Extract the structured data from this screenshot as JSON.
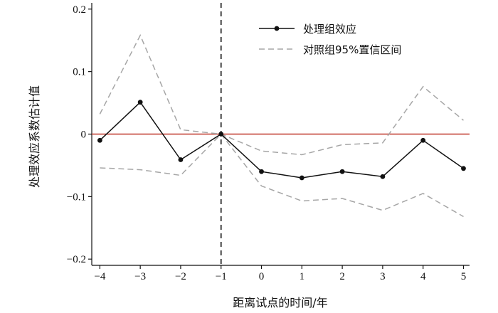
{
  "chart_data": {
    "type": "line",
    "xlabel": "距离试点的时间/年",
    "ylabel": "处理效应系数估计值",
    "x": [
      -4,
      -3,
      -2,
      -1,
      0,
      1,
      2,
      3,
      4,
      5
    ],
    "xlim": [
      -4.2,
      5.15
    ],
    "ylim": [
      -0.21,
      0.21
    ],
    "x_ticks": [
      "−4",
      "−3",
      "−2",
      "−1",
      "0",
      "1",
      "2",
      "3",
      "4",
      "5"
    ],
    "y_ticks": [
      {
        "value": 0.2,
        "label": "0.2"
      },
      {
        "value": 0.1,
        "label": "0.1"
      },
      {
        "value": 0,
        "label": "0"
      },
      {
        "value": -0.1,
        "label": "−0.1"
      },
      {
        "value": -0.2,
        "label": "−0.2"
      }
    ],
    "series": [
      {
        "name": "处理组效应",
        "style": "solid-marker",
        "color": "#111111",
        "values": [
          -0.01,
          0.051,
          -0.041,
          0.0,
          -0.06,
          -0.07,
          -0.06,
          -0.068,
          -0.01,
          -0.055
        ]
      },
      {
        "name": "对照组95%置信区间",
        "style": "dashed",
        "color": "#a6a6a6",
        "values": [
          0.032,
          0.158,
          0.007,
          0.0,
          -0.027,
          -0.033,
          -0.017,
          -0.014,
          0.076,
          0.022
        ],
        "lower": [
          -0.054,
          -0.057,
          -0.066,
          0.0,
          -0.083,
          -0.107,
          -0.103,
          -0.122,
          -0.095,
          -0.132
        ]
      }
    ],
    "reference_lines": {
      "horizontal_y": 0,
      "horizontal_color": "#c0392b",
      "vertical_x": -1,
      "vertical_color": "#111111"
    },
    "legend": "top-right",
    "grid": false
  }
}
